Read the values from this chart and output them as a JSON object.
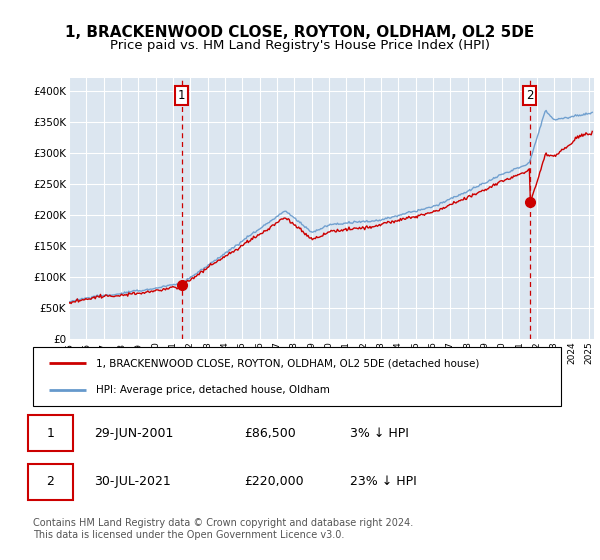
{
  "title": "1, BRACKENWOOD CLOSE, ROYTON, OLDHAM, OL2 5DE",
  "subtitle": "Price paid vs. HM Land Registry's House Price Index (HPI)",
  "xlim_start": 1995.0,
  "xlim_end": 2025.3,
  "ylim": [
    0,
    420000
  ],
  "yticks": [
    0,
    50000,
    100000,
    150000,
    200000,
    250000,
    300000,
    350000,
    400000
  ],
  "ytick_labels": [
    "£0",
    "£50K",
    "£100K",
    "£150K",
    "£200K",
    "£250K",
    "£300K",
    "£350K",
    "£400K"
  ],
  "marker1_x": 2001.5,
  "marker1_y": 86500,
  "marker2_x": 2021.58,
  "marker2_y": 220000,
  "line1_color": "#cc0000",
  "line2_color": "#6699cc",
  "plot_bg_color": "#dce6f0",
  "grid_color": "#ffffff",
  "legend1_label": "1, BRACKENWOOD CLOSE, ROYTON, OLDHAM, OL2 5DE (detached house)",
  "legend2_label": "HPI: Average price, detached house, Oldham",
  "footnote": "Contains HM Land Registry data © Crown copyright and database right 2024.\nThis data is licensed under the Open Government Licence v3.0.",
  "title_fontsize": 11,
  "subtitle_fontsize": 9.5
}
